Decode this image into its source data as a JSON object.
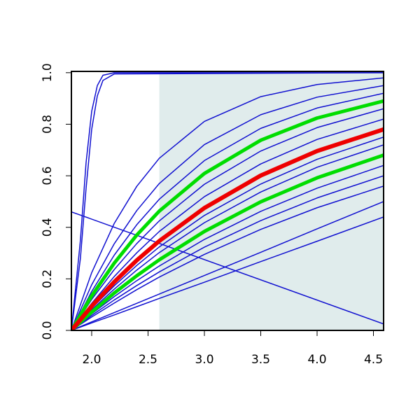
{
  "chart_data": {
    "type": "line",
    "x": [
      1.82,
      2.0,
      2.2,
      2.4,
      2.6,
      3.0,
      3.5,
      4.0,
      4.59
    ],
    "xlim": [
      1.82,
      4.59
    ],
    "ylim": [
      0,
      1.005
    ],
    "xticks": [
      {
        "value": 2,
        "label": "2.0"
      },
      2.5,
      {
        "value": 3,
        "label": "3.0"
      },
      3.5,
      {
        "value": 4,
        "label": "4.0"
      },
      4.5
    ],
    "yticks": [
      {
        "value": 0,
        "label": "0.0"
      },
      0.2,
      0.4,
      0.6,
      0.8,
      {
        "value": 1,
        "label": "1.0"
      }
    ],
    "shaded_xrange": [
      2.6,
      4.59
    ],
    "shaded_color": "#e0ecec",
    "series": [
      {
        "color": "#1010d0",
        "width": 1.5,
        "x": [
          1.82,
          1.9,
          1.95,
          2.0,
          2.05,
          2.1,
          2.2,
          4.59
        ],
        "values": [
          0,
          0.35,
          0.65,
          0.85,
          0.95,
          0.99,
          1.0,
          1.0
        ]
      },
      {
        "color": "#1010d0",
        "width": 1.5,
        "x": [
          1.82,
          1.9,
          1.95,
          2.0,
          2.05,
          2.1,
          2.2,
          4.59
        ],
        "values": [
          0,
          0.28,
          0.55,
          0.78,
          0.91,
          0.97,
          0.995,
          1.0
        ]
      },
      {
        "color": "#1010d0",
        "width": 1.5,
        "x": [
          1.82,
          4.59
        ],
        "values": [
          0.46,
          0.025
        ]
      },
      {
        "color": "#1010d0",
        "width": 1.5,
        "values": [
          0,
          0.224,
          0.415,
          0.559,
          0.668,
          0.811,
          0.907,
          0.954,
          0.98
        ]
      },
      {
        "color": "#1010d0",
        "width": 1.5,
        "values": [
          0,
          0.177,
          0.336,
          0.465,
          0.57,
          0.721,
          0.837,
          0.905,
          0.95
        ]
      },
      {
        "color": "#1010d0",
        "width": 1.5,
        "values": [
          0,
          0.151,
          0.292,
          0.41,
          0.509,
          0.659,
          0.784,
          0.863,
          0.92
        ]
      },
      {
        "color": "#1010d0",
        "width": 1.5,
        "values": [
          0,
          0.12,
          0.236,
          0.337,
          0.425,
          0.567,
          0.696,
          0.787,
          0.86
        ]
      },
      {
        "color": "#1010d0",
        "width": 1.5,
        "values": [
          0,
          0.105,
          0.209,
          0.301,
          0.384,
          0.519,
          0.646,
          0.741,
          0.82
        ]
      },
      {
        "color": "#1010d0",
        "width": 1.5,
        "values": [
          0,
          0.086,
          0.173,
          0.252,
          0.324,
          0.446,
          0.568,
          0.664,
          0.75
        ]
      },
      {
        "color": "#1010d0",
        "width": 1.5,
        "values": [
          0,
          0.08,
          0.16,
          0.234,
          0.302,
          0.418,
          0.537,
          0.633,
          0.72
        ]
      },
      {
        "color": "#1010d0",
        "width": 1.5,
        "values": [
          0,
          0.064,
          0.131,
          0.193,
          0.25,
          0.353,
          0.462,
          0.552,
          0.64
        ]
      },
      {
        "color": "#1010d0",
        "width": 1.5,
        "values": [
          0,
          0.058,
          0.118,
          0.174,
          0.227,
          0.323,
          0.426,
          0.514,
          0.6
        ]
      },
      {
        "color": "#1010d0",
        "width": 1.5,
        "values": [
          0,
          0.052,
          0.106,
          0.158,
          0.207,
          0.295,
          0.392,
          0.476,
          0.56
        ]
      },
      {
        "color": "#1010d0",
        "width": 1.5,
        "values": [
          0,
          0.033,
          0.069,
          0.105,
          0.141,
          0.213,
          0.303,
          0.394,
          0.5
        ]
      },
      {
        "color": "#1010d0",
        "width": 1.5,
        "values": [
          0,
          0.029,
          0.06,
          0.092,
          0.124,
          0.187,
          0.267,
          0.346,
          0.44
        ]
      },
      {
        "color": "#00dd00",
        "width": 5,
        "values": [
          0,
          0.134,
          0.261,
          0.37,
          0.463,
          0.609,
          0.738,
          0.824,
          0.89
        ]
      },
      {
        "color": "#00dd00",
        "width": 5,
        "values": [
          0,
          0.071,
          0.145,
          0.212,
          0.274,
          0.384,
          0.499,
          0.592,
          0.68
        ]
      },
      {
        "color": "#ee0000",
        "width": 6,
        "values": [
          0,
          0.094,
          0.188,
          0.272,
          0.347,
          0.475,
          0.601,
          0.696,
          0.78
        ]
      }
    ]
  }
}
